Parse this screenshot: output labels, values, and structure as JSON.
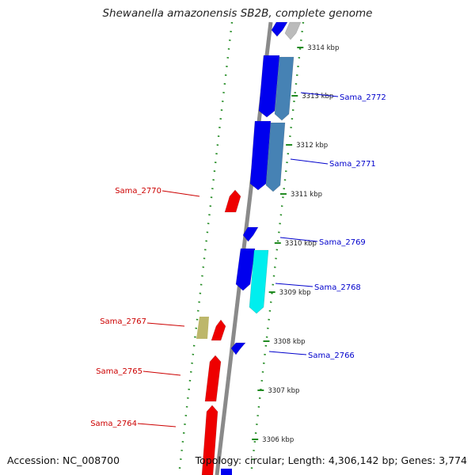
{
  "title": "Shewanella amazonensis SB2B, complete genome",
  "footer": {
    "accession": "Accession: NC_008700",
    "topology": "Topology: circular; Length: 4,306,142 bp; Genes: 3,774"
  },
  "colors": {
    "forward_strand": "#0000ee",
    "reverse_strand": "#ee0000",
    "steelblue": "#4682b4",
    "cyan": "#00eeee",
    "khaki": "#bdb76b",
    "backbone": "#8a8a8a",
    "tick_marks": "#228b22",
    "forward_label": "#0000cc",
    "reverse_label": "#cc0000"
  },
  "ticks": [
    {
      "label": "3314 kbp"
    },
    {
      "label": "3313 kbp"
    },
    {
      "label": "3312 kbp"
    },
    {
      "label": "3311 kbp"
    },
    {
      "label": "3310 kbp"
    },
    {
      "label": "3309 kbp"
    },
    {
      "label": "3308 kbp"
    },
    {
      "label": "3307 kbp"
    },
    {
      "label": "3306 kbp"
    }
  ],
  "genes_forward": [
    "Sama_2772",
    "Sama_2771",
    "Sama_2769",
    "Sama_2768",
    "Sama_2766"
  ],
  "genes_reverse": [
    "Sama_2770",
    "Sama_2767",
    "Sama_2765",
    "Sama_2764"
  ]
}
